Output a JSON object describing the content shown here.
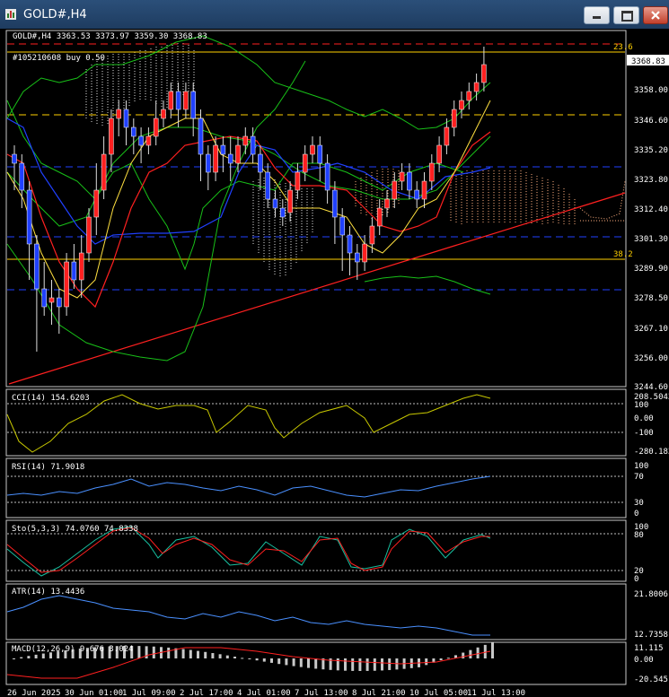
{
  "window": {
    "title": "GOLD#,H4",
    "min_icon": "minimize-icon",
    "max_icon": "maximize-icon",
    "close_icon": "close-icon"
  },
  "chart_header": {
    "symbol_line": "GOLD#,H4  3363.53 3373.97 3359.30 3368.83",
    "order_line": "#105210608 buy 0.50"
  },
  "price_axis": {
    "labels": [
      "3368.83",
      "3358.00",
      "3346.60",
      "3335.20",
      "3323.80",
      "3312.40",
      "3301.30",
      "3289.90",
      "3278.50",
      "3267.10",
      "3256.00",
      "3244.60"
    ],
    "current_price": "3368.83"
  },
  "fib_labels": {
    "top": "23.6",
    "bottom": "38.2"
  },
  "time_axis": [
    "26 Jun 2025",
    "30 Jun 01:00",
    "1 Jul 09:00",
    "2 Jul 17:00",
    "4 Jul 01:00",
    "7 Jul 13:00",
    "8 Jul 21:00",
    "10 Jul 05:00",
    "11 Jul 13:00"
  ],
  "indicators": {
    "cci": {
      "label": "CCI(14) 154.6203",
      "scale": [
        "208.5043",
        "100",
        "0.00",
        "-100",
        "-280.183"
      ]
    },
    "rsi": {
      "label": "RSI(14) 71.9018",
      "scale": [
        "100",
        "70",
        "30",
        "0"
      ]
    },
    "sto": {
      "label": "Sto(5,3,3) 74.0760 74.8338",
      "scale": [
        "100",
        "80",
        "20",
        "0"
      ]
    },
    "atr": {
      "label": "ATR(14) 13.4436",
      "scale": [
        "21.8006",
        "12.7358"
      ]
    },
    "macd": {
      "label": "MACD(12,26,9) 9.676 3.024",
      "scale": [
        "11.115",
        "0.00",
        "-20.545"
      ]
    }
  },
  "colors": {
    "bull": "#ff2020",
    "bear": "#2040ff",
    "title_bar": "#1e3c60",
    "hline_red": "#ff2020",
    "hline_blue": "#2040ff",
    "fib": "#ffd000"
  }
}
